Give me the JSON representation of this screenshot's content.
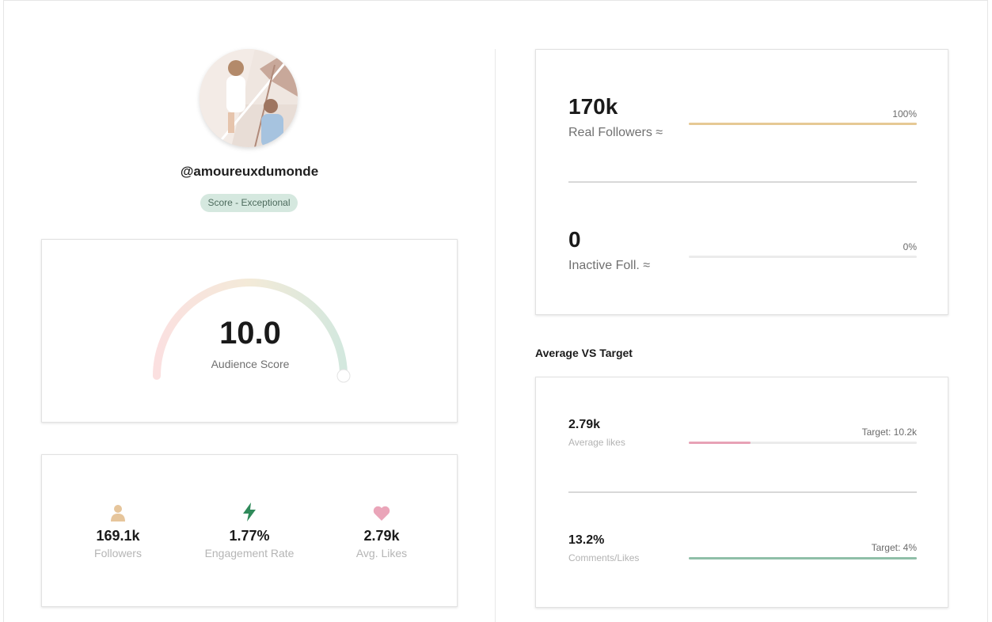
{
  "profile": {
    "handle": "@amoureuxdumonde",
    "score_badge": "Score - Exceptional"
  },
  "audience_score": {
    "value": "10.0",
    "label": "Audience Score",
    "fraction": 1.0,
    "gradient_colors": [
      "#fbe0e0",
      "#f3ead8",
      "#d3e8de"
    ]
  },
  "stats": [
    {
      "icon": "person-icon",
      "value": "169.1k",
      "label": "Followers",
      "color": "#e6c59b"
    },
    {
      "icon": "lightning-icon",
      "value": "1.77%",
      "label": "Engagement Rate",
      "color": "#2f8a5a"
    },
    {
      "icon": "heart-icon",
      "value": "2.79k",
      "label": "Avg. Likes",
      "color": "#eaa5b9"
    }
  ],
  "followers": {
    "real": {
      "value": "170k",
      "label": "Real Followers ≈",
      "percent": "100%",
      "fraction": 1.0,
      "color": "#e6c995"
    },
    "inactive": {
      "value": "0",
      "label": "Inactive Foll. ≈",
      "percent": "0%",
      "fraction": 0.0,
      "color": "#e6c995"
    }
  },
  "average_vs_target": {
    "title": "Average VS Target",
    "likes": {
      "value": "2.79k",
      "label": "Average likes",
      "target": "Target: 10.2k",
      "fraction": 0.27,
      "color": "#e8a2b6"
    },
    "comments": {
      "value": "13.2%",
      "label": "Comments/Likes",
      "target": "Target: 4%",
      "fraction": 1.0,
      "color": "#8fbfa8"
    }
  }
}
